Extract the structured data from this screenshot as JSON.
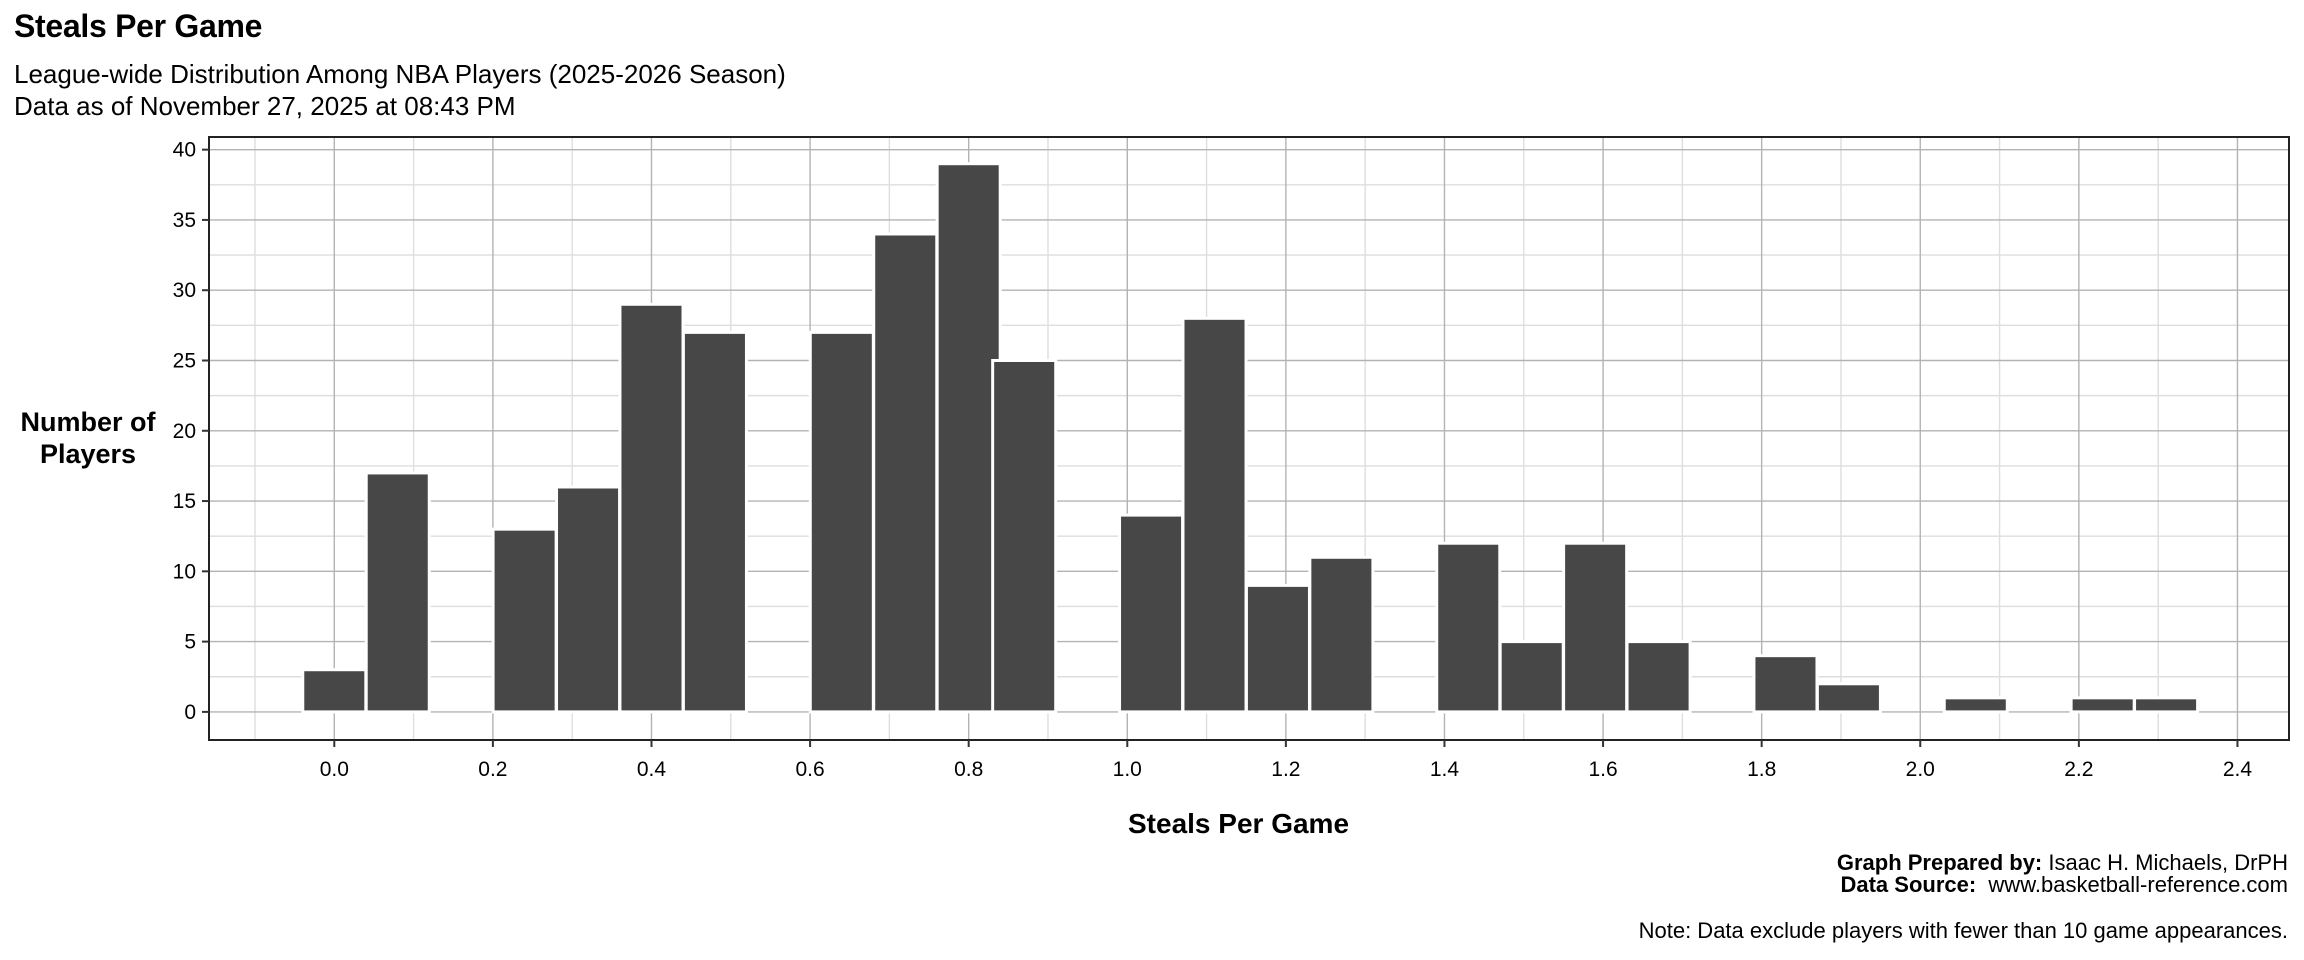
{
  "title": "Steals Per Game",
  "subtitle_line1": "League-wide Distribution Among NBA Players (2025-2026 Season)",
  "subtitle_line2": "Data as of November 27, 2025 at 08:43 PM",
  "y_axis_label_line1": "Number of",
  "y_axis_label_line2": "Players",
  "x_axis_label": "Steals Per Game",
  "caption": {
    "prepared_label": "Graph Prepared by:",
    "prepared_value": "Isaac H. Michaels, DrPH",
    "source_label": "Data Source:",
    "source_value": "www.basketball-reference.com",
    "note": "Note: Data exclude players with fewer than 10 game appearances."
  },
  "colors": {
    "bar_fill": "#474747",
    "bar_stroke": "#ffffff",
    "grid_major": "#b3b3b3",
    "grid_minor": "#dedede",
    "panel_border": "#222222"
  },
  "chart_data": {
    "type": "bar",
    "subtype": "histogram",
    "title": "Steals Per Game",
    "subtitle": "League-wide Distribution Among NBA Players (2025-2026 Season) / Data as of November 27, 2025 at 08:43 PM",
    "xlabel": "Steals Per Game",
    "ylabel": "Number of Players",
    "bin_width": 0.0795,
    "bin_centers": [
      0.0,
      0.08,
      0.16,
      0.24,
      0.32,
      0.4,
      0.48,
      0.56,
      0.64,
      0.72,
      0.8,
      0.87,
      0.95,
      1.03,
      1.11,
      1.19,
      1.27,
      1.35,
      1.43,
      1.51,
      1.59,
      1.67,
      1.75,
      1.83,
      1.91,
      1.99,
      2.07,
      2.15,
      2.23,
      2.31
    ],
    "values": [
      3,
      17,
      0,
      13,
      16,
      29,
      27,
      0,
      27,
      34,
      39,
      25,
      0,
      14,
      28,
      9,
      11,
      0,
      12,
      5,
      12,
      5,
      0,
      4,
      2,
      0,
      1,
      0,
      1,
      1
    ],
    "xlim": [
      -0.158,
      2.465
    ],
    "ylim": [
      -2,
      40.9
    ],
    "x_ticks": [
      0.0,
      0.2,
      0.4,
      0.6,
      0.8,
      1.0,
      1.2,
      1.4,
      1.6,
      1.8,
      2.0,
      2.2,
      2.4
    ],
    "x_tick_labels": [
      "0.0",
      "0.2",
      "0.4",
      "0.6",
      "0.8",
      "1.0",
      "1.2",
      "1.4",
      "1.6",
      "1.8",
      "2.0",
      "2.2",
      "2.4"
    ],
    "y_ticks": [
      0,
      5,
      10,
      15,
      20,
      25,
      30,
      35,
      40
    ],
    "y_tick_labels": [
      "0",
      "5",
      "10",
      "15",
      "20",
      "25",
      "30",
      "35",
      "40"
    ],
    "grid": true,
    "legend": "none"
  }
}
